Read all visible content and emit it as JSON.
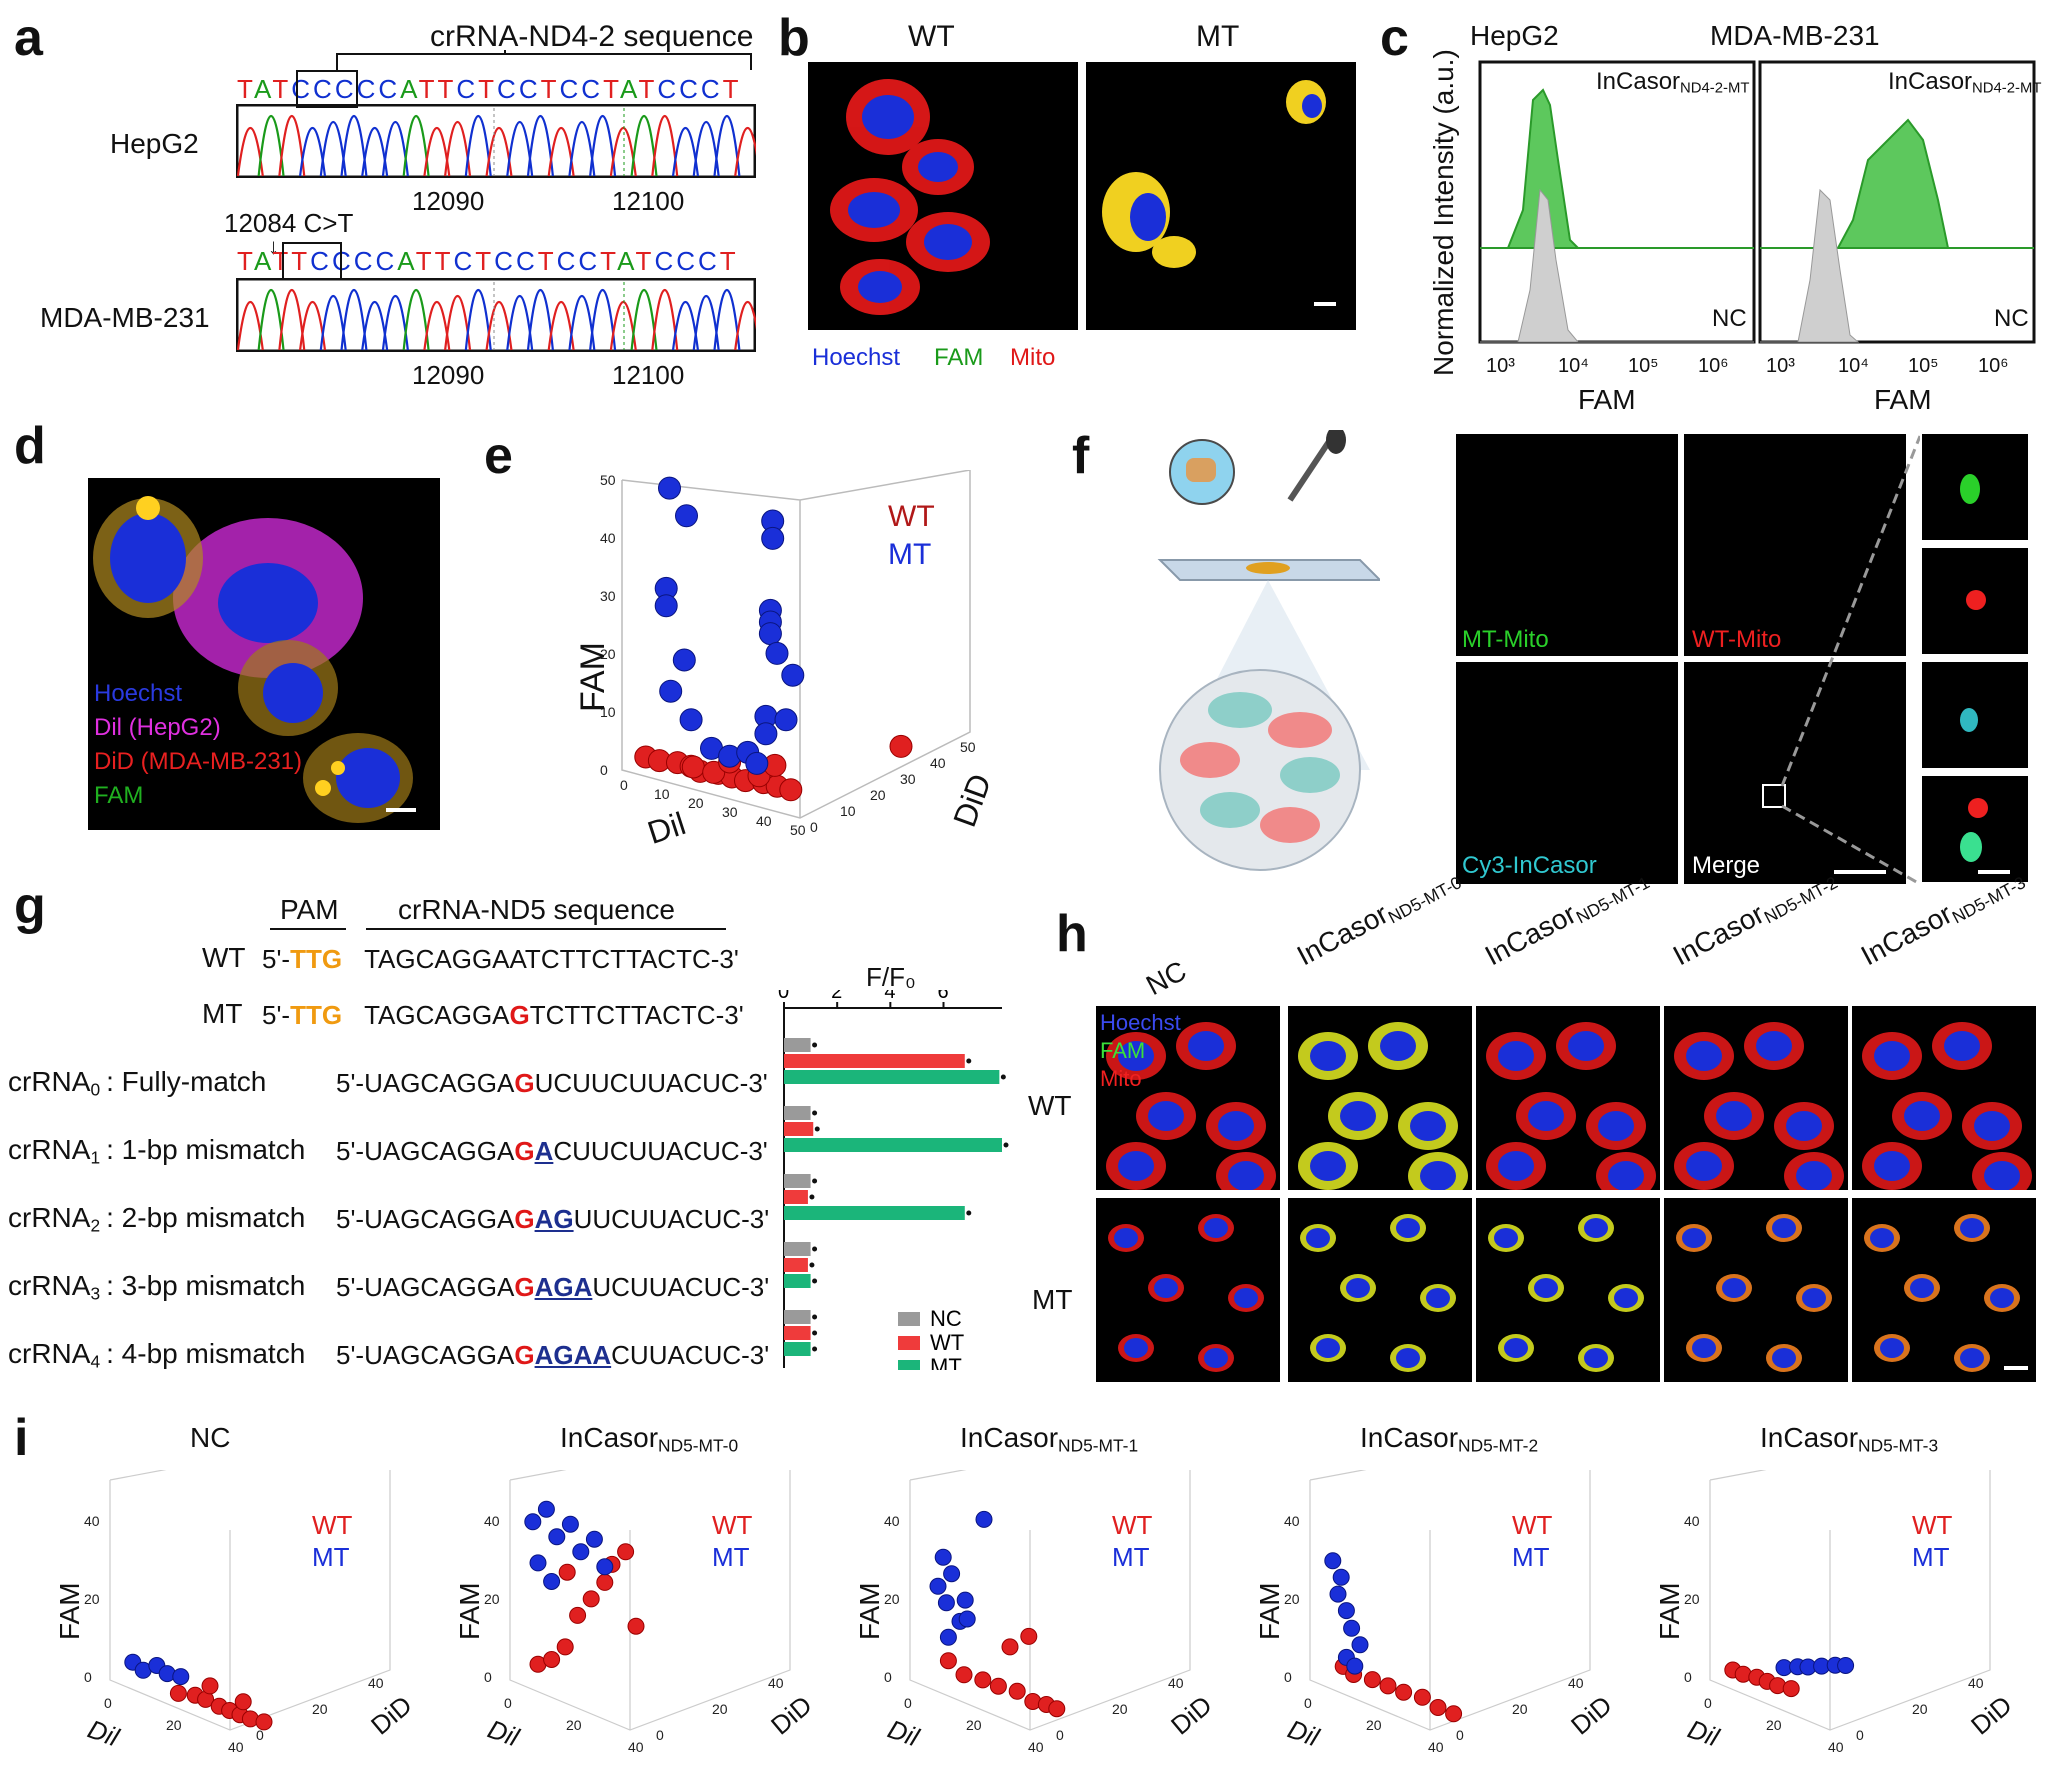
{
  "panels": {
    "a": "a",
    "b": "b",
    "c": "c",
    "d": "d",
    "e": "e",
    "f": "f",
    "g": "g",
    "h": "h",
    "i": "i"
  },
  "a": {
    "header": "crRNA-ND4-2 sequence",
    "cell1": "HepG2",
    "cell2": "MDA-MB-231",
    "mutation": "12084 C>T",
    "seq1": "TATCCCCCATTCTCCTCCTATCCCT",
    "seq2": "TATTCCCCATTCTCCTCCTATCCCT",
    "pos1": "12090",
    "pos2": "12100",
    "colors": {
      "A": "#1a9a1a",
      "T": "#e02020",
      "C": "#1030d0",
      "G": "#111111"
    }
  },
  "b": {
    "wt": "WT",
    "mt": "MT",
    "legend": {
      "hoechst": "Hoechst",
      "fam": "FAM",
      "mito": "Mito"
    }
  },
  "c": {
    "ylabel": "Normalized Intensity (a.u.)",
    "xlabel": "FAM",
    "titles": [
      "HepG2",
      "MDA-MB-231"
    ],
    "label_main": "InCasor",
    "label_sub": "ND4-2-MT",
    "nc": "NC",
    "ticks": [
      "10³",
      "10⁴",
      "10⁵",
      "10⁶"
    ]
  },
  "d": {
    "legend": {
      "hoechst": "Hoechst",
      "dil": "Dil (HepG2)",
      "did": "DiD (MDA-MB-231)",
      "fam": "FAM"
    }
  },
  "e": {
    "chart_data": {
      "type": "scatter",
      "xlabel": "Dil",
      "ylabel": "FAM",
      "zlabel": "DiD",
      "legend": [
        "WT",
        "MT"
      ],
      "zticks": [
        "0",
        "10",
        "20",
        "30",
        "40",
        "50"
      ],
      "xticks": [
        "0",
        "10",
        "20",
        "30",
        "40",
        "50"
      ],
      "yticks": [
        "0",
        "10",
        "20",
        "30",
        "40",
        "50"
      ],
      "dticks": [
        "0",
        "10",
        "20",
        "30",
        "40",
        "50"
      ]
    }
  },
  "f": {
    "labels": {
      "mt": "MT-Mito",
      "wt": "WT-Mito",
      "cy3": "Cy3-InCasor",
      "merge": "Merge"
    }
  },
  "g": {
    "pam": "PAM",
    "header": "crRNA-ND5 sequence",
    "wt": {
      "label": "WT",
      "prefix": "5'-",
      "pam": "TTG",
      "seq": "TAGCAGGAATCTTCTTACTC-3'"
    },
    "mt": {
      "label": "MT",
      "prefix": "5'-",
      "pam": "TTG",
      "seq_a": "TAGCAGGA",
      "seq_b": "G",
      "seq_c": "TCTTCTTACTC-3'"
    },
    "rows": [
      {
        "name": "crRNA",
        "idx": "0",
        "desc": "Fully-match",
        "a": "5'-UAGCAGGA",
        "red": "G",
        "blue": "",
        "c": "UCUUCUUACUC-3'"
      },
      {
        "name": "crRNA",
        "idx": "1",
        "desc": "1-bp mismatch",
        "a": "5'-UAGCAGGA",
        "red": "G",
        "blue": "A",
        "c": "CUUCUUACUC-3'"
      },
      {
        "name": "crRNA",
        "idx": "2",
        "desc": "2-bp mismatch",
        "a": "5'-UAGCAGGA",
        "red": "G",
        "blue": "AG",
        "c": "UUCUUACUC-3'"
      },
      {
        "name": "crRNA",
        "idx": "3",
        "desc": "3-bp mismatch",
        "a": "5'-UAGCAGGA",
        "red": "G",
        "blue": "AGA",
        "c": "UCUUACUC-3'"
      },
      {
        "name": "crRNA",
        "idx": "4",
        "desc": "4-bp mismatch",
        "a": "5'-UAGCAGGA",
        "red": "G",
        "blue": "AGAA",
        "c": "CUUACUC-3'"
      }
    ],
    "chart_data": {
      "type": "bar",
      "title": "F/F₀",
      "categories": [
        "crRNA0",
        "crRNA1",
        "crRNA2",
        "crRNA3",
        "crRNA4"
      ],
      "xticks": [
        "0",
        "2",
        "4",
        "6"
      ],
      "xlim": [
        0,
        8.2
      ],
      "series": [
        {
          "name": "NC",
          "color": "#9a9a9a",
          "values": [
            1.0,
            1.0,
            1.0,
            1.0,
            1.0
          ]
        },
        {
          "name": "WT",
          "color": "#ef3b3b",
          "values": [
            6.8,
            1.1,
            0.9,
            0.9,
            1.0
          ]
        },
        {
          "name": "MT",
          "color": "#1bb57a",
          "values": [
            8.1,
            8.2,
            6.8,
            1.0,
            1.0
          ]
        }
      ]
    }
  },
  "h": {
    "cols": [
      {
        "main": "NC",
        "sub": ""
      },
      {
        "main": "InCasor",
        "sub": "ND5-MT-0"
      },
      {
        "main": "InCasor",
        "sub": "ND5-MT-1"
      },
      {
        "main": "InCasor",
        "sub": "ND5-MT-2"
      },
      {
        "main": "InCasor",
        "sub": "ND5-MT-3"
      }
    ],
    "rows": [
      "WT",
      "MT"
    ],
    "legend": {
      "hoechst": "Hoechst",
      "fam": "FAM",
      "mito": "Mito"
    }
  },
  "i": {
    "titles": [
      {
        "main": "NC",
        "sub": ""
      },
      {
        "main": "InCasor",
        "sub": "ND5-MT-0"
      },
      {
        "main": "InCasor",
        "sub": "ND5-MT-1"
      },
      {
        "main": "InCasor",
        "sub": "ND5-MT-2"
      },
      {
        "main": "InCasor",
        "sub": "ND5-MT-3"
      }
    ],
    "xlabel": "Dil",
    "ylabel": "FAM",
    "zlabel": "DiD",
    "legend": [
      "WT",
      "MT"
    ],
    "ticks": {
      "fam": [
        "0",
        "20",
        "40"
      ],
      "dil": [
        "0",
        "20",
        "40"
      ],
      "did": [
        "0",
        "20",
        "40"
      ]
    }
  }
}
